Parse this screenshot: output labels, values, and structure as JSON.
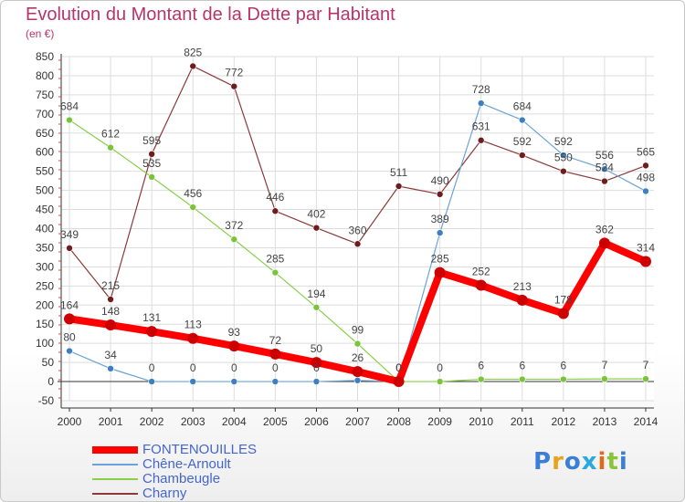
{
  "header": {
    "title": "Evolution du Montant de la Dette par Habitant",
    "subtitle": "(en €)"
  },
  "logo": {
    "text": "Proxiti",
    "letters": [
      "P",
      "r",
      "o",
      "x",
      "i",
      "t",
      "i"
    ],
    "colors": [
      "#3a7fd5",
      "#e8a21c",
      "#3a7fd5",
      "#2aa8e0",
      "#e06a1c",
      "#8ac43a",
      "#3a7fd5"
    ]
  },
  "chart_data": {
    "type": "line",
    "title": "Evolution du Montant de la Dette par Habitant",
    "subtitle": "(en €)",
    "x": [
      2000,
      2001,
      2002,
      2003,
      2004,
      2005,
      2006,
      2007,
      2008,
      2009,
      2010,
      2011,
      2012,
      2013,
      2014
    ],
    "ylim": [
      -50,
      850
    ],
    "yticks": [
      -50,
      0,
      50,
      100,
      150,
      200,
      250,
      300,
      350,
      400,
      450,
      500,
      550,
      600,
      650,
      700,
      750,
      800,
      850
    ],
    "grid": "horizontal",
    "legend": "bottom-left",
    "series": [
      {
        "name": "FONTENOUILLES",
        "color": "#ff0000",
        "marker": "#cc0000",
        "width": 8,
        "radius": 6,
        "values": [
          164,
          148,
          131,
          113,
          93,
          72,
          50,
          26,
          0,
          285,
          252,
          213,
          178,
          362,
          314
        ],
        "labels": [
          "164",
          "148",
          "131",
          "113",
          "93",
          "72",
          "50",
          "26",
          "0",
          "285",
          "252",
          "213",
          "178",
          "362",
          "314"
        ]
      },
      {
        "name": "Chêne-Arnoult",
        "color": "#6ba3d6",
        "marker": "#3d7fc0",
        "width": 1.2,
        "radius": 3.5,
        "values": [
          80,
          34,
          0,
          0,
          0,
          0,
          0,
          3,
          0,
          389,
          728,
          684,
          592,
          556,
          498
        ],
        "labels": [
          "80",
          "34",
          "0",
          "0",
          "0",
          "0",
          "0",
          "",
          "",
          "389",
          "728",
          "684",
          "592",
          "556",
          "498"
        ]
      },
      {
        "name": "Chambeugle",
        "color": "#88d048",
        "marker": "#7ac43a",
        "width": 1.2,
        "radius": 3.5,
        "values": [
          684,
          612,
          535,
          456,
          372,
          285,
          194,
          99,
          0,
          0,
          6,
          6,
          6,
          7,
          7
        ],
        "labels": [
          "684",
          "612",
          "535",
          "456",
          "372",
          "285",
          "194",
          "99",
          "",
          "0",
          "6",
          "6",
          "6",
          "7",
          "7"
        ]
      },
      {
        "name": "Charny",
        "color": "#8b3a3a",
        "marker": "#6e1c1c",
        "width": 1.2,
        "radius": 3.5,
        "values": [
          349,
          215,
          595,
          825,
          772,
          446,
          402,
          360,
          511,
          490,
          631,
          592,
          550,
          524,
          565
        ],
        "labels": [
          "349",
          "215",
          "595",
          "825",
          "772",
          "446",
          "402",
          "360",
          "511",
          "490",
          "631",
          "592",
          "550",
          "524",
          "565"
        ]
      }
    ],
    "extra_labels": [
      {
        "x": 2008,
        "y": 0,
        "text": "0"
      }
    ]
  }
}
